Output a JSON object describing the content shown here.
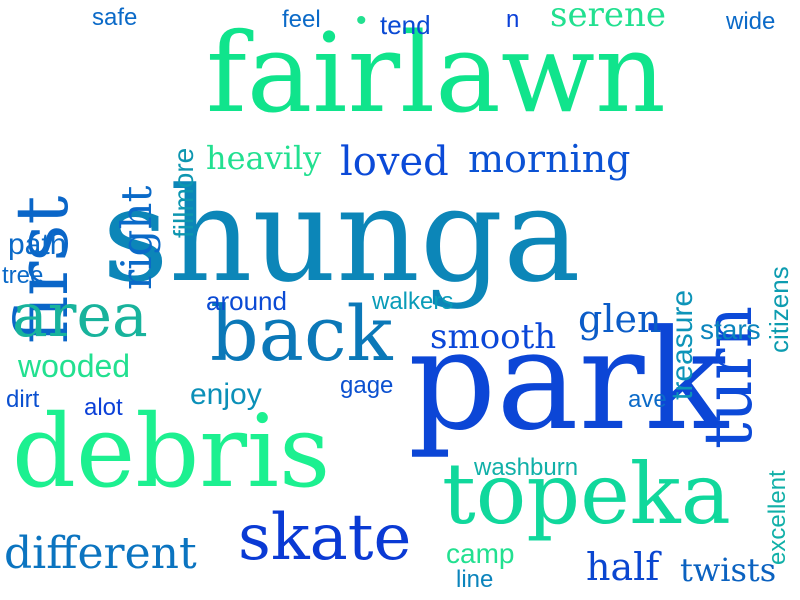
{
  "words": [
    {
      "id": "shunga",
      "text": "shunga",
      "color": "#0c86b8"
    },
    {
      "id": "park",
      "text": "park",
      "color": "#0c46d6"
    },
    {
      "id": "fairlawn",
      "text": "fairlawn",
      "color": "#10e48c"
    },
    {
      "id": "debris",
      "text": "debris",
      "color": "#1cf090"
    },
    {
      "id": "topeka",
      "text": "topeka",
      "color": "#10d89c"
    },
    {
      "id": "first",
      "text": "first",
      "color": "#0a66c8"
    },
    {
      "id": "back",
      "text": "back",
      "color": "#0b78b8"
    },
    {
      "id": "turn",
      "text": "turn",
      "color": "#0c4ad8"
    },
    {
      "id": "area",
      "text": "area",
      "color": "#18b39c"
    },
    {
      "id": "skate",
      "text": "skate",
      "color": "#0a3ad4"
    },
    {
      "id": "different",
      "text": "different",
      "color": "#0b74c0"
    },
    {
      "id": "loved",
      "text": "loved",
      "color": "#0b4ad8"
    },
    {
      "id": "morning",
      "text": "morning",
      "color": "#0b52d4"
    },
    {
      "id": "heavily",
      "text": "heavily",
      "color": "#22e090"
    },
    {
      "id": "right",
      "text": "right",
      "color": "#0a6ac8"
    },
    {
      "id": "glen",
      "text": "glen",
      "color": "#0b5cc8"
    },
    {
      "id": "smooth",
      "text": "smooth",
      "color": "#0a46d8"
    },
    {
      "id": "half",
      "text": "half",
      "color": "#0a46d0"
    },
    {
      "id": "twists",
      "text": "twists",
      "color": "#0b62c0"
    },
    {
      "id": "serene",
      "text": "serene",
      "color": "#22e090"
    },
    {
      "id": "fillmore",
      "text": "fillmore",
      "color": "#0d96b0"
    },
    {
      "id": "treasure",
      "text": "treasure",
      "color": "#0d94b8"
    },
    {
      "id": "citizens",
      "text": "citizens",
      "color": "#0d9cb0"
    },
    {
      "id": "excellent",
      "text": "excellent",
      "color": "#11b0a8"
    },
    {
      "id": "path",
      "text": "path",
      "color": "#0b6ac8"
    },
    {
      "id": "tree",
      "text": "tree",
      "color": "#0b6ac8"
    },
    {
      "id": "wooded",
      "text": "wooded",
      "color": "#22e090"
    },
    {
      "id": "dirt",
      "text": "dirt",
      "color": "#0b50d0"
    },
    {
      "id": "alot",
      "text": "alot",
      "color": "#0b40d8"
    },
    {
      "id": "enjoy",
      "text": "enjoy",
      "color": "#0b90b8"
    },
    {
      "id": "around",
      "text": "around",
      "color": "#0b4ad4"
    },
    {
      "id": "walkers",
      "text": "walkers",
      "color": "#0a9cb8"
    },
    {
      "id": "gage",
      "text": "gage",
      "color": "#0b50d0"
    },
    {
      "id": "stars",
      "text": "stars",
      "color": "#0b84bc"
    },
    {
      "id": "ave",
      "text": "ave",
      "color": "#0b6ac8"
    },
    {
      "id": "washburn",
      "text": "washburn",
      "color": "#11b0a8"
    },
    {
      "id": "camp",
      "text": "camp",
      "color": "#22e090"
    },
    {
      "id": "line",
      "text": "line",
      "color": "#0b84bc"
    },
    {
      "id": "safe",
      "text": "safe",
      "color": "#0b6ac8"
    },
    {
      "id": "feel",
      "text": "feel",
      "color": "#0b6ac8"
    },
    {
      "id": "tend",
      "text": "tend",
      "color": "#0b4ad4"
    },
    {
      "id": "n",
      "text": "n",
      "color": "#0b40d8"
    },
    {
      "id": "wide",
      "text": "wide",
      "color": "#0b6ac8"
    },
    {
      "id": "dot",
      "text": "•",
      "color": "#22e090"
    }
  ]
}
